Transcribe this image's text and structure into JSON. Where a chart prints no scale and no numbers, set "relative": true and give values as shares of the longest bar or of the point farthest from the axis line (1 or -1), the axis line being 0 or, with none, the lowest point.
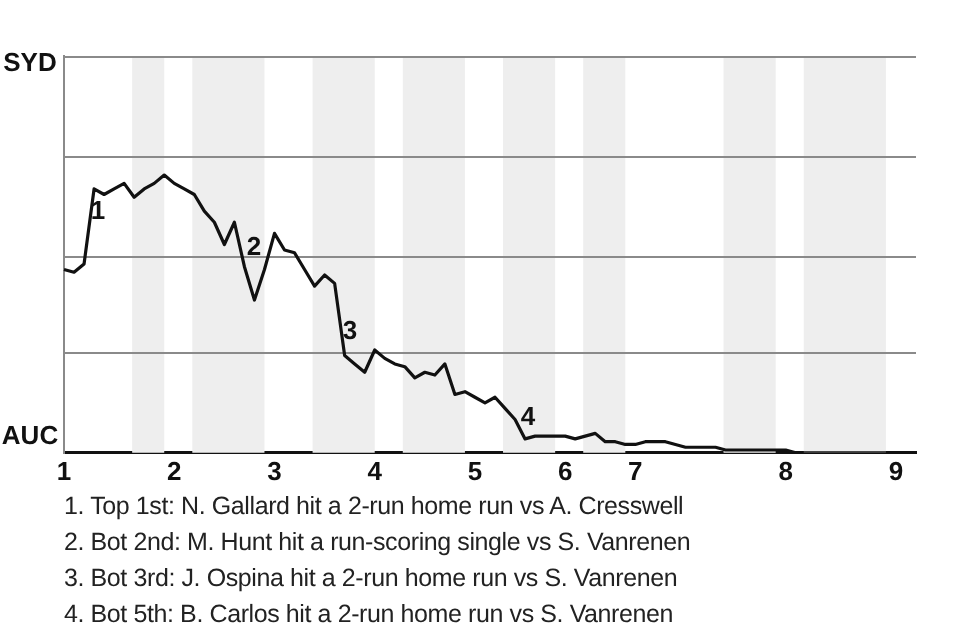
{
  "chart_data": {
    "type": "line",
    "relative": true,
    "categories": [
      "1",
      null,
      null,
      null,
      null,
      null,
      null,
      null,
      null,
      null,
      null,
      "2",
      null,
      null,
      null,
      null,
      null,
      null,
      null,
      null,
      null,
      "3",
      null,
      null,
      null,
      null,
      null,
      null,
      null,
      null,
      null,
      "4",
      null,
      null,
      null,
      null,
      null,
      null,
      null,
      null,
      null,
      "5",
      null,
      null,
      null,
      null,
      null,
      null,
      null,
      null,
      "6",
      null,
      null,
      null,
      null,
      null,
      null,
      "7",
      null,
      null,
      null,
      null,
      null,
      null,
      null,
      null,
      null,
      null,
      null,
      null,
      null,
      null,
      "8",
      null,
      null,
      null,
      null,
      null,
      null,
      null,
      null,
      null,
      null,
      "9",
      null,
      null
    ],
    "series": [
      {
        "color": "#111111",
        "values": [
          0.66,
          0.65,
          0.68,
          0.95,
          0.93,
          0.95,
          0.97,
          0.92,
          0.95,
          0.97,
          1,
          0.97,
          0.95,
          0.93,
          0.87,
          0.83,
          0.75,
          0.83,
          0.67,
          0.55,
          0.66,
          0.79,
          0.73,
          0.72,
          0.66,
          0.6,
          0.64,
          0.61,
          0.35,
          0.32,
          0.29,
          0.37,
          0.34,
          0.32,
          0.31,
          0.27,
          0.29,
          0.28,
          0.32,
          0.21,
          0.22,
          0.2,
          0.18,
          0.2,
          0.16,
          0.12,
          0.05,
          0.06,
          0.06,
          0.06,
          0.06,
          0.05,
          0.06,
          0.07,
          0.04,
          0.04,
          0.03,
          0.03,
          0.04,
          0.04,
          0.04,
          0.03,
          0.02,
          0.02,
          0.02,
          0.02,
          0.01,
          0.01,
          0.01,
          0.01,
          0.01,
          0.01,
          0.01,
          0,
          0,
          0,
          0,
          0,
          0,
          0,
          0,
          0,
          0,
          0,
          0,
          0
        ]
      }
    ],
    "annotations": [
      "SYD",
      "AUC",
      "1. Top 1st: N. Gallard hit a 2-run home run vs A. Cresswell",
      "2. Bot 2nd: M. Hunt hit a run-scoring single vs S. Vanrenen",
      "3. Bot 3rd: J. Ospina hit a 2-run home run vs S. Vanrenen",
      "4. Bot 5th: B. Carlos hit a 2-run home run vs S. Vanrenen",
      "1",
      "2",
      "3",
      "4"
    ],
    "ref_lines": [
      {
        "axis": "y",
        "value": 0.36,
        "color": "#8a8a8a"
      },
      {
        "axis": "y",
        "value": 0.71,
        "color": "#8a8a8a"
      },
      {
        "axis": "y",
        "value": 1.07,
        "color": "#8a8a8a"
      },
      {
        "axis": "y",
        "value": 1.43,
        "color": "#8a8a8a"
      }
    ],
    "legend": false,
    "marker": "none",
    "line_style": "solid"
  }
}
